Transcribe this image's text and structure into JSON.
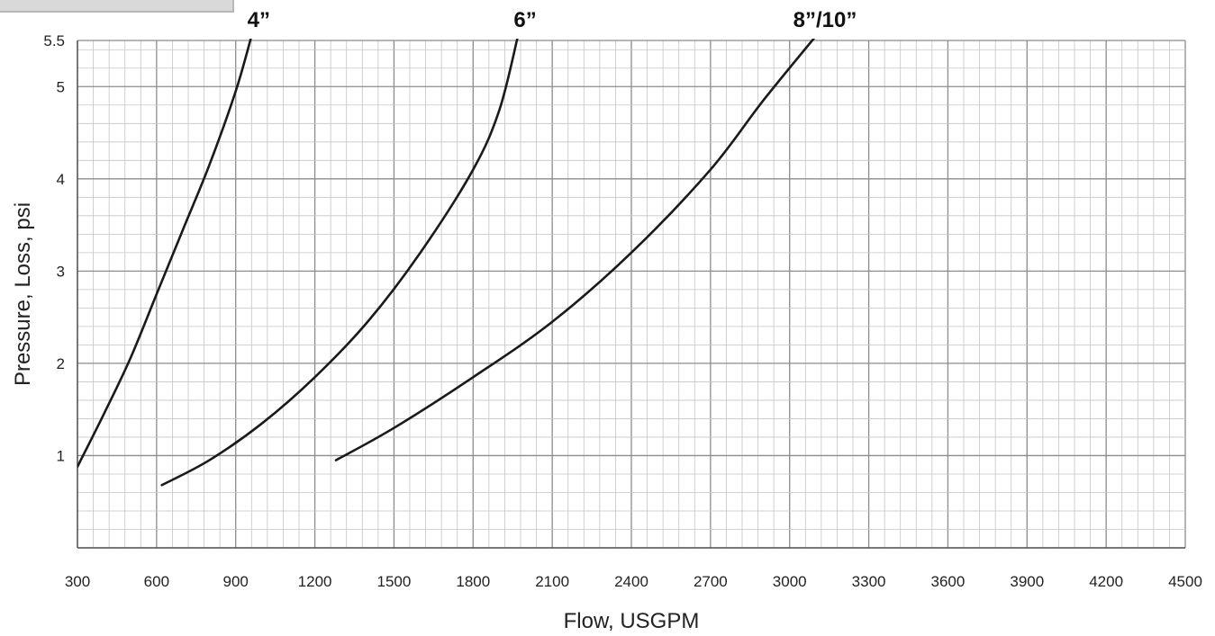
{
  "chart_data": {
    "type": "line",
    "xlabel": "Flow, USGPM",
    "ylabel": "Pressure, Loss, psi",
    "xlim": [
      300,
      4500
    ],
    "ylim": [
      0,
      5.5
    ],
    "x_ticks": [
      300,
      600,
      900,
      1200,
      1500,
      1800,
      2100,
      2400,
      2700,
      3000,
      3300,
      3600,
      3900,
      4200,
      4500
    ],
    "y_ticks": [
      1,
      2,
      3,
      4,
      5,
      5.5
    ],
    "y_tick_labels": [
      "1",
      "2",
      "3",
      "4",
      "5",
      "5.5"
    ],
    "grid": true,
    "series": [
      {
        "name": "4”",
        "points": [
          [
            300,
            0.88
          ],
          [
            400,
            1.45
          ],
          [
            500,
            2.05
          ],
          [
            600,
            2.75
          ],
          [
            700,
            3.45
          ],
          [
            800,
            4.15
          ],
          [
            900,
            4.95
          ],
          [
            960,
            5.55
          ]
        ]
      },
      {
        "name": "6”",
        "points": [
          [
            620,
            0.68
          ],
          [
            800,
            0.95
          ],
          [
            1000,
            1.35
          ],
          [
            1200,
            1.85
          ],
          [
            1400,
            2.45
          ],
          [
            1600,
            3.2
          ],
          [
            1800,
            4.1
          ],
          [
            1900,
            4.75
          ],
          [
            1970,
            5.55
          ]
        ]
      },
      {
        "name": "8”/10”",
        "points": [
          [
            1280,
            0.95
          ],
          [
            1500,
            1.3
          ],
          [
            1800,
            1.85
          ],
          [
            2100,
            2.45
          ],
          [
            2400,
            3.2
          ],
          [
            2700,
            4.1
          ],
          [
            2900,
            4.85
          ],
          [
            3100,
            5.55
          ]
        ]
      }
    ]
  }
}
